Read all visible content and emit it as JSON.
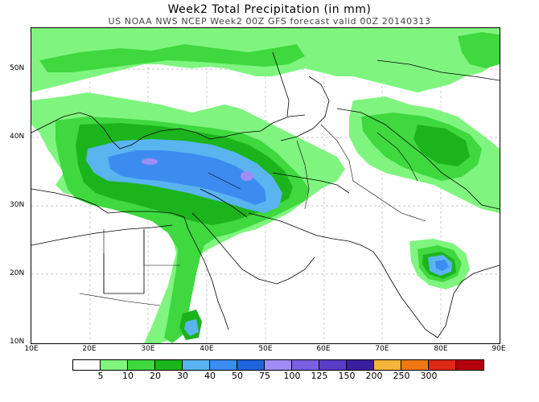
{
  "header": {
    "title": "Week2 Total Precipitation (in mm)",
    "subtitle": "US NOAA NWS NCEP Week2 00Z GFS forecast valid 00Z 20140313"
  },
  "axes": {
    "lat_labels": [
      "50N",
      "40N",
      "30N",
      "20N",
      "10N"
    ],
    "lon_labels": [
      "10E",
      "20E",
      "30E",
      "40E",
      "50E",
      "60E",
      "70E",
      "80E",
      "90E"
    ]
  },
  "legend": {
    "colors": [
      "#ffffff",
      "#7ff57f",
      "#3fd83f",
      "#1cb41c",
      "#5ab4f0",
      "#3c8cf0",
      "#1e64dc",
      "#a08cf5",
      "#7860e0",
      "#5a3cc8",
      "#3c1ea0",
      "#f5b43c",
      "#f07814",
      "#dc2814",
      "#b4000a"
    ],
    "labels": [
      "5",
      "10",
      "20",
      "30",
      "40",
      "50",
      "75",
      "100",
      "125",
      "150",
      "200",
      "250",
      "300"
    ]
  }
}
